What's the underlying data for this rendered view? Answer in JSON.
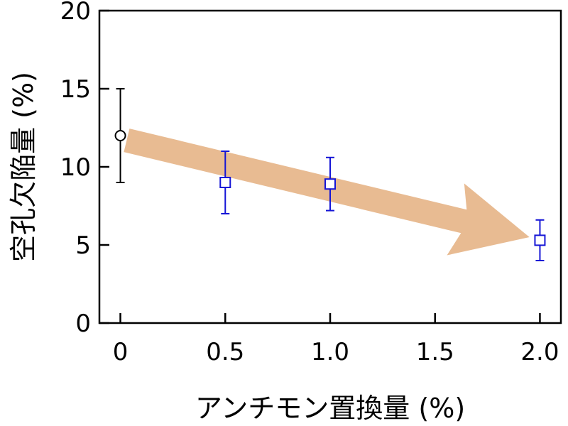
{
  "chart_data": {
    "type": "scatter",
    "xlabel": "アンチモン置換量 (%)",
    "ylabel": "空孔欠陥量 (%)",
    "xlim": [
      -0.1,
      2.1
    ],
    "ylim": [
      0,
      20
    ],
    "x_ticks": [
      "0",
      "0.5",
      "1.0",
      "1.5",
      "2.0"
    ],
    "x_tick_values": [
      0,
      0.5,
      1.0,
      1.5,
      2.0
    ],
    "y_ticks": [
      "0",
      "5",
      "10",
      "15",
      "20"
    ],
    "y_tick_values": [
      0,
      5,
      10,
      15,
      20
    ],
    "grid": false,
    "series": [
      {
        "marker": "circle",
        "color": "#000000",
        "points": [
          {
            "x": 0,
            "y": 12.0,
            "err_low": 9.0,
            "err_high": 15.0
          }
        ]
      },
      {
        "marker": "square",
        "color": "#1515d6",
        "points": [
          {
            "x": 0.5,
            "y": 9.0,
            "err_low": 7.0,
            "err_high": 11.0
          },
          {
            "x": 1.0,
            "y": 8.9,
            "err_low": 7.2,
            "err_high": 10.6
          },
          {
            "x": 2.0,
            "y": 5.3,
            "err_low": 4.0,
            "err_high": 6.6
          }
        ]
      }
    ],
    "annotation": {
      "type": "trend-arrow",
      "color": "#e8bb92",
      "from": {
        "x": 0.03,
        "y": 11.7
      },
      "to": {
        "x": 1.95,
        "y": 5.5
      }
    }
  }
}
